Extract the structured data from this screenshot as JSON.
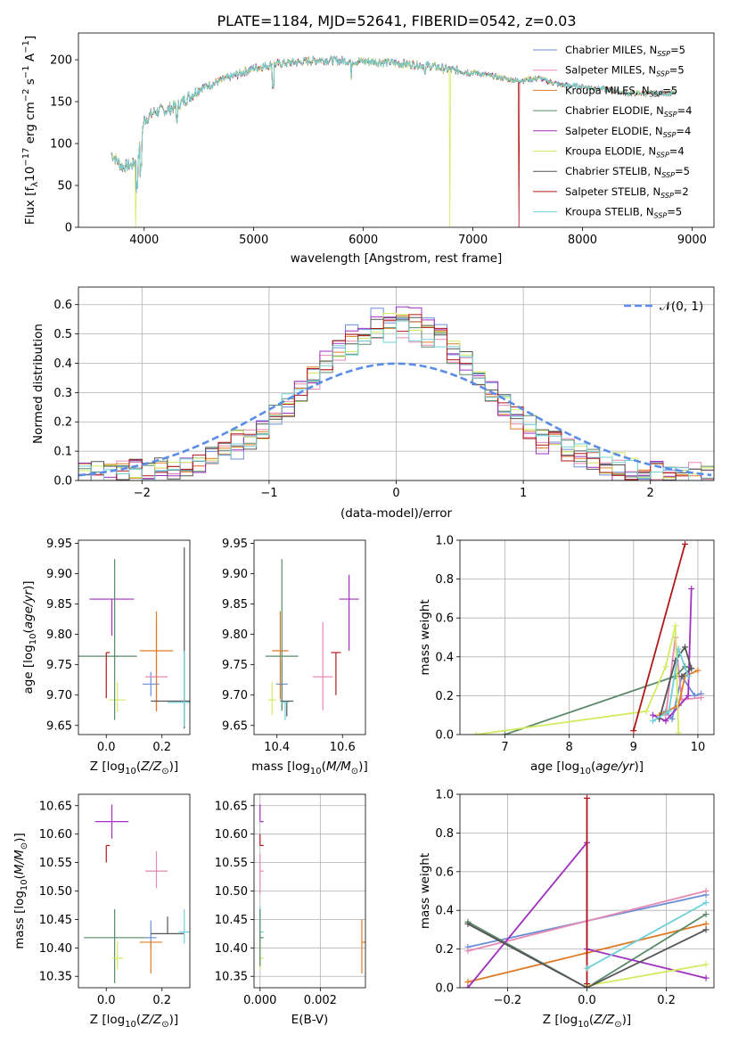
{
  "figure": {
    "title": "PLATE=1184, MJD=52641, FIBERID=0542, z=0.03"
  },
  "series": [
    {
      "key": "CM",
      "name": "Chabrier MILES, N$_{SSP}$=5",
      "label": "Chabrier MILES, N",
      "sub": "SSP",
      "suffix": "=5",
      "color": "#6a8fd6"
    },
    {
      "key": "SM",
      "name": "Salpeter MILES, N$_{SSP}$=5",
      "label": "Salpeter MILES, N",
      "sub": "SSP",
      "suffix": "=5",
      "color": "#e68ab5"
    },
    {
      "key": "KM",
      "name": "Kroupa MILES, N$_{SSP}$=5",
      "label": "Kroupa MILES, N",
      "sub": "SSP",
      "suffix": "=5",
      "color": "#e07b25"
    },
    {
      "key": "CE",
      "name": "Chabrier ELODIE, N$_{SSP}$=4",
      "label": "Chabrier ELODIE, N",
      "sub": "SSP",
      "suffix": "=4",
      "color": "#5a8a6a"
    },
    {
      "key": "SE",
      "name": "Salpeter ELODIE, N$_{SSP}$=4",
      "label": "Salpeter ELODIE, N",
      "sub": "SSP",
      "suffix": "=4",
      "color": "#a030c0"
    },
    {
      "key": "KE",
      "name": "Kroupa ELODIE, N$_{SSP}$=4",
      "label": "Kroupa ELODIE, N",
      "sub": "SSP",
      "suffix": "=4",
      "color": "#d0ec60"
    },
    {
      "key": "CS",
      "name": "Chabrier STELIB, N$_{SSP}$=5",
      "label": "Chabrier STELIB, N",
      "sub": "SSP",
      "suffix": "=5",
      "color": "#555555"
    },
    {
      "key": "SS",
      "name": "Salpeter STELIB, N$_{SSP}$=2",
      "label": "Salpeter STELIB, N",
      "sub": "SSP",
      "suffix": "=2",
      "color": "#b01818"
    },
    {
      "key": "KS",
      "name": "Kroupa STELIB, N$_{SSP}$=5",
      "label": "Kroupa STELIB, N",
      "sub": "SSP",
      "suffix": "=5",
      "color": "#70d0d8"
    }
  ],
  "chart_data": [
    {
      "id": "spectrum",
      "type": "line",
      "xlabel": "wavelength [Angstrom, rest frame]",
      "ylabel": "Flux [f_λ 10^-17 erg cm^-2 s^-1 A^-1]",
      "xlim": [
        3400,
        9200
      ],
      "ylim": [
        0,
        232
      ],
      "xticks": [
        4000,
        5000,
        6000,
        7000,
        8000,
        9000
      ],
      "yticks": [
        0,
        50,
        100,
        150,
        200
      ],
      "continuum_x": [
        3700,
        3800,
        3900,
        3950,
        4000,
        4100,
        4200,
        4300,
        4400,
        4500,
        4700,
        4900,
        5000,
        5200,
        5400,
        5600,
        5800,
        6000,
        6200,
        6400,
        6600,
        6800,
        7000,
        7200,
        7400,
        7600,
        7800,
        8000,
        8200,
        8400,
        8600,
        8800
      ],
      "continuum_y": [
        88,
        72,
        75,
        88,
        128,
        138,
        140,
        145,
        155,
        165,
        175,
        185,
        190,
        195,
        197,
        200,
        199,
        198,
        197,
        195,
        193,
        188,
        185,
        180,
        175,
        178,
        170,
        168,
        165,
        160,
        160,
        160
      ],
      "dips": [
        {
          "series": "KE",
          "x": 3920,
          "y": 0
        },
        {
          "series": "KE",
          "x": 6790,
          "y": 0
        },
        {
          "series": "SS",
          "x": 7420,
          "y": 0
        }
      ],
      "grid": false,
      "legend": "top-right"
    },
    {
      "id": "residuals",
      "type": "histogram",
      "xlabel": "(data-model)/error",
      "ylabel": "Normed distribution",
      "xlim": [
        -2.5,
        2.5
      ],
      "ylim": [
        0,
        0.66
      ],
      "xticks": [
        -2,
        -1,
        0,
        1,
        2
      ],
      "yticks": [
        0.0,
        0.1,
        0.2,
        0.3,
        0.4,
        0.5,
        0.6
      ],
      "reference": {
        "name": "N(0,1)",
        "label_main": "𝒩(0, 1)",
        "color": "#5b8de8"
      },
      "sigma_by_series": [
        0.67,
        0.73,
        0.7,
        0.72,
        0.66,
        0.71,
        0.69,
        0.69,
        0.74
      ],
      "grid": true,
      "legend": "top-right"
    },
    {
      "id": "age_vs_Z",
      "type": "errorbar",
      "xlabel": "Z [log10(Z/Z☉)]",
      "ylabel": "age [log10(age/yr)]",
      "xlim": [
        -0.1,
        0.3
      ],
      "ylim": [
        9.635,
        9.955
      ],
      "xticks": [
        0.0,
        0.2
      ],
      "yticks": [
        9.65,
        9.7,
        9.75,
        9.8,
        9.85,
        9.9,
        9.95
      ],
      "points": [
        {
          "series": "CM",
          "x": 0.16,
          "y": 9.718,
          "xerr": 0.03,
          "yerr": [
            0.02,
            0.02
          ]
        },
        {
          "series": "SM",
          "x": 0.18,
          "y": 9.73,
          "xerr": 0.04,
          "yerr": [
            0.055,
            0.09
          ]
        },
        {
          "series": "KM",
          "x": 0.18,
          "y": 9.773,
          "xerr": 0.06,
          "yerr": [
            0.1,
            0.065
          ]
        },
        {
          "series": "CE",
          "x": 0.0,
          "y": 9.764,
          "xerr": 0.11,
          "yerr": [
            0.0,
            0.0
          ]
        },
        {
          "series": "SE",
          "x": 0.02,
          "y": 9.858,
          "xerr": 0.08,
          "yerr": [
            0.06,
            0.0
          ]
        },
        {
          "series": "KE",
          "x": 0.04,
          "y": 9.692,
          "xerr": 0.03,
          "yerr": [
            0.02,
            0.03
          ]
        },
        {
          "series": "CS",
          "x": 0.28,
          "y": 9.69,
          "xerr": 0.12,
          "yerr": [
            0.045,
            0.253
          ]
        },
        {
          "series": "SS",
          "x": 0.0,
          "y": 9.77,
          "xerr": 0.0,
          "yerr": [
            0.075,
            0.0
          ]
        },
        {
          "series": "KS",
          "x": 0.28,
          "y": 9.688,
          "xerr": 0.06,
          "yerr": [
            0.04,
            0.085
          ]
        },
        {
          "series": "CE",
          "x": 0.03,
          "y": 9.764,
          "xerr": 0.0,
          "yerr": [
            0.105,
            0.16
          ]
        }
      ],
      "grid": false
    },
    {
      "id": "age_vs_mass",
      "type": "errorbar",
      "xlabel": "mass [log10(M/M☉)]",
      "ylabel": "",
      "xlim": [
        10.33,
        10.67
      ],
      "ylim": [
        9.635,
        9.955
      ],
      "xticks": [
        10.4,
        10.6
      ],
      "yticks": [
        9.65,
        9.7,
        9.75,
        9.8,
        9.85,
        9.9,
        9.95
      ],
      "points": [
        {
          "series": "CM",
          "x": 10.415,
          "y": 9.718,
          "xerr": 0.018,
          "yerr": [
            0.04,
            0.04
          ]
        },
        {
          "series": "SM",
          "x": 10.54,
          "y": 9.73,
          "xerr": 0.03,
          "yerr": [
            0.055,
            0.09
          ]
        },
        {
          "series": "KM",
          "x": 10.41,
          "y": 9.773,
          "xerr": 0.025,
          "yerr": [
            0.08,
            0.065
          ]
        },
        {
          "series": "CE",
          "x": 10.415,
          "y": 9.764,
          "xerr": 0.05,
          "yerr": [
            0.09,
            0.16
          ]
        },
        {
          "series": "SE",
          "x": 10.62,
          "y": 9.858,
          "xerr": 0.03,
          "yerr": [
            0.085,
            0.04
          ]
        },
        {
          "series": "KE",
          "x": 10.385,
          "y": 9.692,
          "xerr": 0.012,
          "yerr": [
            0.025,
            0.03
          ]
        },
        {
          "series": "CS",
          "x": 10.43,
          "y": 9.69,
          "xerr": 0.02,
          "yerr": [
            0.025,
            0.0
          ]
        },
        {
          "series": "SS",
          "x": 10.58,
          "y": 9.77,
          "xerr": 0.015,
          "yerr": [
            0.07,
            0.0
          ]
        },
        {
          "series": "KS",
          "x": 10.425,
          "y": 9.688,
          "xerr": 0.012,
          "yerr": [
            0.03,
            0.0
          ]
        }
      ],
      "grid": false
    },
    {
      "id": "weight_vs_age",
      "type": "line",
      "xlabel": "age [log10(age/yr)]",
      "ylabel": "mass weight",
      "xlim": [
        6.3,
        10.25
      ],
      "ylim": [
        0,
        1
      ],
      "xticks": [
        7,
        8,
        9,
        10
      ],
      "yticks": [
        0.0,
        0.2,
        0.4,
        0.6,
        0.8,
        1.0
      ],
      "series_points": {
        "CM": [
          [
            9.5,
            0.12
          ],
          [
            9.6,
            0.08
          ],
          [
            9.75,
            0.3
          ],
          [
            9.95,
            0.2
          ],
          [
            10.05,
            0.21
          ]
        ],
        "SM": [
          [
            9.5,
            0.1
          ],
          [
            9.65,
            0.5
          ],
          [
            9.75,
            0.18
          ],
          [
            10.05,
            0.19
          ]
        ],
        "KM": [
          [
            9.4,
            0.1
          ],
          [
            9.7,
            0.15
          ],
          [
            9.8,
            0.3
          ],
          [
            10.0,
            0.33
          ]
        ],
        "CE": [
          [
            7.0,
            0.0
          ],
          [
            9.65,
            0.3
          ],
          [
            9.8,
            0.35
          ],
          [
            9.9,
            0.34
          ]
        ],
        "SE": [
          [
            9.3,
            0.1
          ],
          [
            9.5,
            0.07
          ],
          [
            9.85,
            0.2
          ],
          [
            9.9,
            0.75
          ]
        ],
        "KE": [
          [
            6.55,
            0.0
          ],
          [
            9.2,
            0.12
          ],
          [
            9.5,
            0.35
          ],
          [
            9.65,
            0.56
          ],
          [
            9.7,
            0.01
          ]
        ],
        "CS": [
          [
            9.4,
            0.08
          ],
          [
            9.65,
            0.38
          ],
          [
            9.8,
            0.45
          ],
          [
            9.9,
            0.34
          ],
          [
            9.75,
            0.3
          ]
        ],
        "SS": [
          [
            9.0,
            0.02
          ],
          [
            9.8,
            0.98
          ]
        ],
        "KS": [
          [
            9.3,
            0.07
          ],
          [
            9.55,
            0.12
          ],
          [
            9.7,
            0.44
          ],
          [
            9.85,
            0.3
          ]
        ]
      },
      "grid": true
    },
    {
      "id": "mass_vs_Z",
      "type": "errorbar",
      "xlabel": "Z [log10(Z/Z☉)]",
      "ylabel": "mass [log10(M/M☉)]",
      "xlim": [
        -0.1,
        0.3
      ],
      "ylim": [
        10.33,
        10.67
      ],
      "xticks": [
        0.0,
        0.2
      ],
      "yticks": [
        10.35,
        10.4,
        10.45,
        10.5,
        10.55,
        10.6,
        10.65
      ],
      "points": [
        {
          "series": "CM",
          "x": 0.16,
          "y": 10.418,
          "xerr": 0.02,
          "yerr": [
            0.02,
            0.03
          ]
        },
        {
          "series": "SM",
          "x": 0.18,
          "y": 10.535,
          "xerr": 0.04,
          "yerr": [
            0.03,
            0.035
          ]
        },
        {
          "series": "KM",
          "x": 0.16,
          "y": 10.41,
          "xerr": 0.04,
          "yerr": [
            0.055,
            0.0
          ]
        },
        {
          "series": "CE",
          "x": 0.03,
          "y": 10.418,
          "xerr": 0.11,
          "yerr": [
            0.08,
            0.05
          ]
        },
        {
          "series": "SE",
          "x": 0.02,
          "y": 10.622,
          "xerr": 0.06,
          "yerr": [
            0.03,
            0.03
          ]
        },
        {
          "series": "KE",
          "x": 0.04,
          "y": 10.382,
          "xerr": 0.02,
          "yerr": [
            0.02,
            0.03
          ]
        },
        {
          "series": "CS",
          "x": 0.22,
          "y": 10.425,
          "xerr": 0.06,
          "yerr": [
            0.0,
            0.03
          ]
        },
        {
          "series": "SS",
          "x": 0.0,
          "y": 10.58,
          "xerr": 0.0,
          "yerr": [
            0.03,
            0.0
          ]
        },
        {
          "series": "KS",
          "x": 0.28,
          "y": 10.428,
          "xerr": 0.02,
          "yerr": [
            0.02,
            0.04
          ]
        }
      ],
      "grid": false
    },
    {
      "id": "mass_vs_EBV",
      "type": "errorbar",
      "xlabel": "E(B-V)",
      "ylabel": "",
      "xlim": [
        -0.0002,
        0.0035
      ],
      "ylim": [
        10.33,
        10.67
      ],
      "xticks": [
        0.0,
        0.002
      ],
      "yticks": [
        10.35,
        10.4,
        10.45,
        10.5,
        10.55,
        10.6,
        10.65
      ],
      "points": [
        {
          "series": "SE",
          "x": 0.0,
          "y": 10.622,
          "xerr": 0.0,
          "yerr": [
            0.0,
            0.03
          ]
        },
        {
          "series": "SM",
          "x": 0.0,
          "y": 10.535,
          "xerr": 0.0,
          "yerr": [
            0.04,
            0.03
          ]
        },
        {
          "series": "SS",
          "x": 0.0,
          "y": 10.58,
          "xerr": 0.0,
          "yerr": [
            0.0,
            0.02
          ]
        },
        {
          "series": "KS",
          "x": 0.0,
          "y": 10.428,
          "xerr": 0.0,
          "yerr": [
            0.02,
            0.045
          ]
        },
        {
          "series": "KE",
          "x": 0.0,
          "y": 10.382,
          "xerr": 0.0,
          "yerr": [
            0.02,
            0.03
          ]
        },
        {
          "series": "CE",
          "x": 0.0,
          "y": 10.418,
          "xerr": 0.0,
          "yerr": [
            0.05,
            0.05
          ]
        },
        {
          "series": "KM",
          "x": 0.00338,
          "y": 10.41,
          "xerr": 0.0,
          "yerr": [
            0.055,
            0.04
          ]
        }
      ],
      "grid": true
    },
    {
      "id": "weight_vs_Z",
      "type": "line",
      "xlabel": "Z [log10(Z/Z☉)]",
      "ylabel": "mass weight",
      "xlim": [
        -0.32,
        0.32
      ],
      "ylim": [
        0,
        1
      ],
      "xticks": [
        -0.2,
        0.0,
        0.2
      ],
      "yticks": [
        0.0,
        0.2,
        0.4,
        0.6,
        0.8,
        1.0
      ],
      "series_points": {
        "CM": [
          [
            -0.3,
            0.21
          ],
          [
            0.3,
            0.48
          ]
        ],
        "SM": [
          [
            -0.3,
            0.19
          ],
          [
            0.3,
            0.5
          ]
        ],
        "KM": [
          [
            -0.3,
            0.03
          ],
          [
            0.0,
            0.18
          ],
          [
            0.3,
            0.33
          ]
        ],
        "CE": [
          [
            -0.3,
            0.34
          ],
          [
            0.0,
            0.0
          ],
          [
            0.3,
            0.38
          ]
        ],
        "SE": [
          [
            -0.3,
            0.0
          ],
          [
            0.0,
            0.75
          ],
          [
            0.0,
            0.2
          ],
          [
            0.3,
            0.05
          ]
        ],
        "KE": [
          [
            0.0,
            0.01
          ],
          [
            0.3,
            0.12
          ]
        ],
        "CS": [
          [
            -0.3,
            0.33
          ],
          [
            0.0,
            0.0
          ],
          [
            0.3,
            0.3
          ]
        ],
        "SS": [
          [
            0.0,
            0.98
          ],
          [
            0.0,
            0.02
          ]
        ],
        "KS": [
          [
            0.0,
            0.1
          ],
          [
            0.3,
            0.44
          ]
        ]
      },
      "grid": true
    }
  ]
}
